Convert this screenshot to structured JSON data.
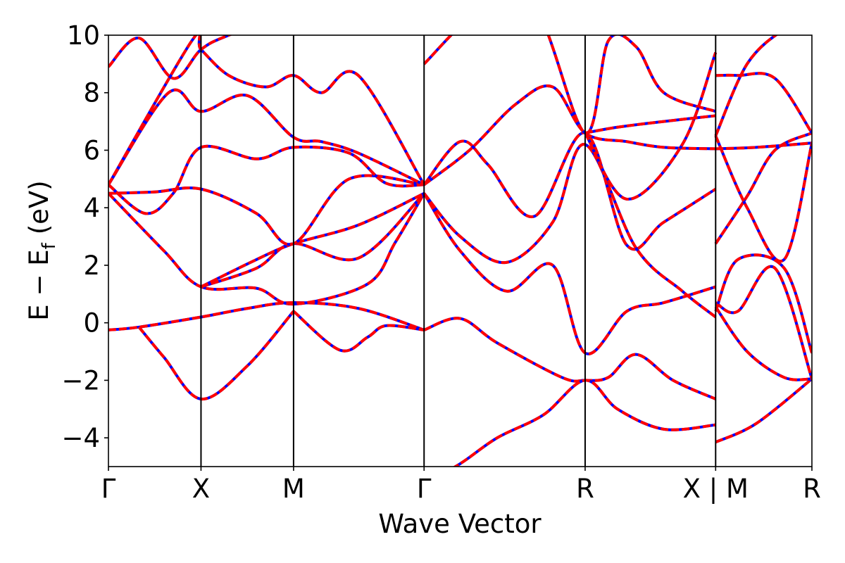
{
  "chart_data": {
    "type": "line",
    "xlabel": "Wave Vector",
    "ylabel": "E − E",
    "ylabel_subscript": "f",
    "ylabel_unit": "(eV)",
    "ylim": [
      -5,
      10
    ],
    "yticks": [
      -4,
      -2,
      0,
      2,
      4,
      6,
      8,
      10
    ],
    "ytick_labels": [
      "−4",
      "−2",
      "0",
      "2",
      "4",
      "6",
      "8",
      "10"
    ],
    "xlim": [
      0,
      7.6
    ],
    "kpoints": [
      {
        "label": "Γ",
        "x": 0
      },
      {
        "label": "X",
        "x": 1
      },
      {
        "label": "M",
        "x": 2
      },
      {
        "label": "Γ",
        "x": 3.41
      },
      {
        "label": "R",
        "x": 5.15
      },
      {
        "label": "X | M",
        "x": 6.56
      },
      {
        "label": "R",
        "x": 7.6
      }
    ],
    "line_styles": {
      "solid": "#0000ff",
      "dashed": "#ff0000"
    },
    "grid": false,
    "legend": "none",
    "series": [
      {
        "x": [
          0,
          0.33,
          1.0,
          1.5,
          2.0,
          2.7,
          3.41
        ],
        "y": [
          -0.25,
          -0.15,
          0.2,
          0.5,
          0.7,
          0.5,
          -0.25
        ]
      },
      {
        "x": [
          0.33,
          0.6,
          1.0,
          1.5,
          2.0
        ],
        "y": [
          -0.15,
          -1.2,
          -2.65,
          -1.5,
          0.4
        ]
      },
      {
        "x": [
          2.0,
          2.5,
          2.8,
          3.0,
          3.41
        ],
        "y": [
          0.4,
          -0.95,
          -0.5,
          -0.1,
          -0.25
        ]
      },
      {
        "x": [
          0,
          0.6,
          1.0,
          1.6,
          2.0,
          2.8,
          3.1,
          3.41
        ],
        "y": [
          4.5,
          2.5,
          1.25,
          1.2,
          0.65,
          1.35,
          2.8,
          4.5
        ]
      },
      {
        "x": [
          1.0,
          1.6,
          2.0,
          2.7,
          3.41
        ],
        "y": [
          1.25,
          1.9,
          2.75,
          2.25,
          4.5
        ]
      },
      {
        "x": [
          1.0,
          1.6,
          2.0,
          2.7,
          3.41
        ],
        "y": [
          1.25,
          2.2,
          2.75,
          3.4,
          4.5
        ]
      },
      {
        "x": [
          0,
          0.5,
          1.0,
          1.6,
          2.0,
          2.6,
          3.41
        ],
        "y": [
          4.5,
          4.55,
          4.65,
          3.8,
          2.75,
          5.0,
          4.8
        ]
      },
      {
        "x": [
          0,
          0.4,
          0.7,
          1.0,
          1.6,
          2.0,
          2.6,
          3.0,
          3.41
        ],
        "y": [
          4.8,
          3.8,
          4.5,
          6.1,
          5.7,
          6.1,
          5.9,
          4.85,
          4.8
        ]
      },
      {
        "x": [
          0,
          0.65,
          1.0,
          1.5,
          2.0,
          2.3,
          2.7,
          3.41
        ],
        "y": [
          4.8,
          8.0,
          7.35,
          7.9,
          6.45,
          6.3,
          5.9,
          4.8
        ]
      },
      {
        "x": [
          0,
          0.9,
          1.0,
          1.3,
          1.7,
          2.0,
          2.3,
          2.7,
          3.41
        ],
        "y": [
          4.8,
          9.8,
          9.5,
          8.6,
          8.2,
          8.6,
          8.0,
          8.6,
          4.8
        ]
      },
      {
        "x": [
          0,
          0.33,
          0.7,
          1.0,
          1.3,
          2.0,
          2.4,
          3.0
        ],
        "y": [
          8.9,
          9.9,
          8.5,
          9.5,
          10.0,
          10.8,
          10.4,
          10.5
        ]
      },
      {
        "x": [
          3.41,
          3.8,
          4.2,
          4.9,
          5.15,
          5.4,
          5.7,
          6.1,
          6.56
        ],
        "y": [
          -0.25,
          0.15,
          -0.7,
          -1.9,
          -2.0,
          -1.9,
          -1.1,
          -2.0,
          -2.65
        ]
      },
      {
        "x": [
          3.41,
          3.8,
          4.2,
          4.7,
          5.15,
          5.5,
          6.0,
          6.56
        ],
        "y": [
          -5.6,
          -4.9,
          -4.0,
          -3.2,
          -2.0,
          -3.0,
          -3.7,
          -3.55
        ]
      },
      {
        "x": [
          3.41,
          3.8,
          4.3,
          4.8,
          5.15,
          5.6,
          6.0,
          6.56
        ],
        "y": [
          4.5,
          2.5,
          1.1,
          2.0,
          -1.05,
          0.4,
          0.7,
          1.25
        ]
      },
      {
        "x": [
          3.41,
          3.8,
          4.3,
          4.8,
          5.15,
          5.7,
          6.2,
          6.56
        ],
        "y": [
          4.5,
          3.0,
          2.1,
          3.5,
          6.2,
          2.6,
          1.1,
          0.2
        ]
      },
      {
        "x": [
          3.41,
          3.8,
          4.1,
          4.6,
          5.15,
          5.6,
          6.0,
          6.56
        ],
        "y": [
          4.8,
          6.3,
          5.5,
          3.7,
          6.6,
          2.7,
          3.5,
          4.65
        ]
      },
      {
        "x": [
          3.41,
          3.9,
          4.4,
          4.8,
          5.15,
          5.6,
          6.0,
          6.56
        ],
        "y": [
          4.8,
          6.0,
          7.6,
          8.2,
          6.6,
          6.3,
          6.1,
          6.05
        ]
      },
      {
        "x": [
          3.41,
          4.0,
          4.6,
          5.15,
          5.4,
          5.7,
          6.0,
          6.56
        ],
        "y": [
          9.0,
          10.8,
          11.0,
          6.6,
          9.8,
          9.6,
          8.0,
          7.35
        ]
      },
      {
        "x": [
          5.15,
          5.6,
          6.2,
          6.56
        ],
        "y": [
          6.6,
          4.3,
          6.2,
          9.4
        ]
      },
      {
        "x": [
          5.15,
          5.5,
          6.0,
          6.56
        ],
        "y": [
          6.6,
          6.8,
          7.0,
          7.2
        ]
      },
      {
        "x": [
          6.56,
          7.0,
          7.6
        ],
        "y": [
          -4.15,
          -3.5,
          -1.95
        ]
      },
      {
        "x": [
          6.56,
          6.8,
          7.2,
          7.6
        ],
        "y": [
          0.7,
          0.4,
          1.9,
          -1.95
        ]
      },
      {
        "x": [
          6.56,
          6.9,
          7.3,
          7.6
        ],
        "y": [
          0.55,
          -1.0,
          -1.9,
          -1.95
        ]
      },
      {
        "x": [
          6.56,
          6.8,
          7.3,
          7.6
        ],
        "y": [
          0.4,
          2.2,
          1.9,
          -1.05
        ]
      },
      {
        "x": [
          6.56,
          6.9,
          7.2,
          7.6
        ],
        "y": [
          2.75,
          4.4,
          6.0,
          6.6
        ]
      },
      {
        "x": [
          6.56,
          6.9,
          7.3,
          7.6
        ],
        "y": [
          6.5,
          4.0,
          2.2,
          6.25
        ]
      },
      {
        "x": [
          6.56,
          7.0,
          7.6
        ],
        "y": [
          6.05,
          6.1,
          6.25
        ]
      },
      {
        "x": [
          6.56,
          6.8,
          7.2,
          7.6
        ],
        "y": [
          8.6,
          8.6,
          8.5,
          6.6
        ]
      },
      {
        "x": [
          6.56,
          6.9,
          7.3,
          7.6
        ],
        "y": [
          6.5,
          9.0,
          10.2,
          10.5
        ]
      }
    ]
  }
}
